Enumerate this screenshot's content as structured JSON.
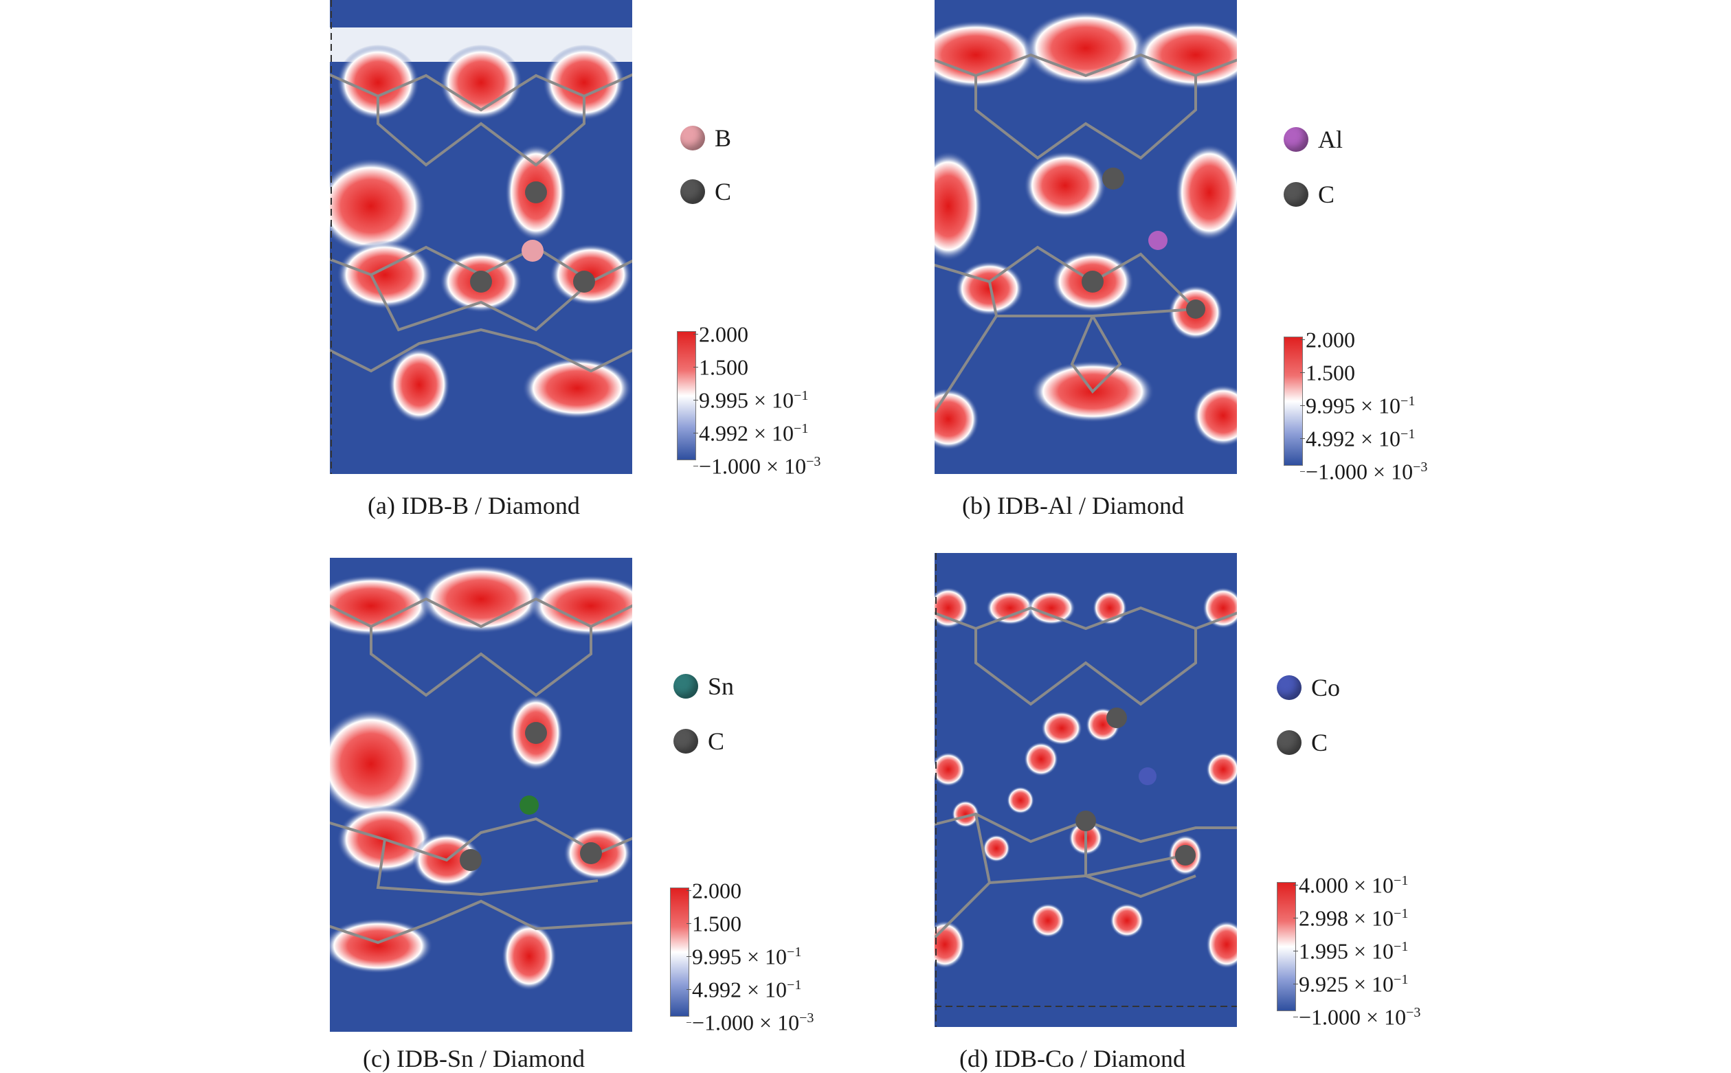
{
  "panels": [
    {
      "caption": "(a) IDB-B / Diamond",
      "legend": [
        {
          "label": "B",
          "color": "#e8a0a8"
        },
        {
          "label": "C",
          "color": "#555555"
        }
      ],
      "colorbar": [
        "2.000",
        "1.500",
        "9.995 × 10",
        "4.992 × 10",
        "−1.000 × 10"
      ],
      "colorbar_exp": [
        "",
        "",
        "−1",
        "−1",
        "−3"
      ]
    },
    {
      "caption": "(b) IDB-Al / Diamond",
      "legend": [
        {
          "label": "Al",
          "color": "#b060c0"
        },
        {
          "label": "C",
          "color": "#555555"
        }
      ],
      "colorbar": [
        "2.000",
        "1.500",
        "9.995 × 10",
        "4.992 × 10",
        "−1.000 × 10"
      ],
      "colorbar_exp": [
        "",
        "",
        "−1",
        "−1",
        "−3"
      ]
    },
    {
      "caption": "(c) IDB-Sn / Diamond",
      "legend": [
        {
          "label": "Sn",
          "color": "#2f7a78"
        },
        {
          "label": "C",
          "color": "#555555"
        }
      ],
      "colorbar": [
        "2.000",
        "1.500",
        "9.995 × 10",
        "4.992 × 10",
        "−1.000 × 10"
      ],
      "colorbar_exp": [
        "",
        "",
        "−1",
        "−1",
        "−3"
      ]
    },
    {
      "caption": "(d) IDB-Co / Diamond",
      "legend": [
        {
          "label": "Co",
          "color": "#4858b8"
        },
        {
          "label": "C",
          "color": "#555555"
        }
      ],
      "colorbar": [
        "4.000 × 10",
        "2.998 × 10",
        "1.995 × 10",
        "9.925 × 10",
        "−1.000 × 10"
      ],
      "colorbar_exp": [
        "−1",
        "−1",
        "−1",
        "−1",
        "−3"
      ]
    }
  ],
  "colors": {
    "map_low": "#2f4f9f",
    "map_mid": "#ffffff",
    "map_high": "#e02020",
    "bond": "#8a8a8a"
  }
}
